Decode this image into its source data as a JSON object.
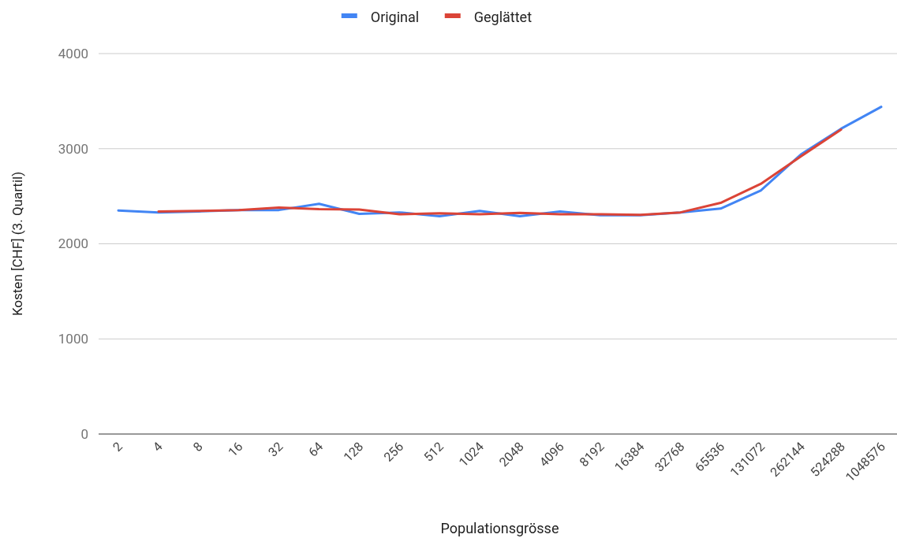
{
  "chart_data": {
    "type": "line",
    "xlabel": "Populationsgrösse",
    "ylabel": "Kosten [CHF] (3. Quartil)",
    "categories": [
      "2",
      "4",
      "8",
      "16",
      "32",
      "64",
      "128",
      "256",
      "512",
      "1024",
      "2048",
      "4096",
      "8192",
      "16384",
      "32768",
      "65536",
      "131072",
      "262144",
      "524288",
      "1048576"
    ],
    "series": [
      {
        "name": "Original",
        "color": "#4285f4",
        "values": [
          2350,
          2330,
          2340,
          2355,
          2355,
          2420,
          2315,
          2330,
          2290,
          2345,
          2290,
          2340,
          2300,
          2300,
          2330,
          2370,
          2560,
          2940,
          3210,
          3440
        ]
      },
      {
        "name": "Geglättet",
        "color": "#db4437",
        "values": [
          null,
          2340,
          2345,
          2355,
          2380,
          2365,
          2360,
          2310,
          2320,
          2310,
          2325,
          2310,
          2310,
          2305,
          2330,
          2430,
          2630,
          2920,
          3200,
          null
        ]
      }
    ],
    "ylim": [
      0,
      4000
    ],
    "yticks": [
      0,
      1000,
      2000,
      3000,
      4000
    ],
    "grid": "y",
    "legend": "top",
    "marker": "none",
    "line_style": "solid"
  }
}
